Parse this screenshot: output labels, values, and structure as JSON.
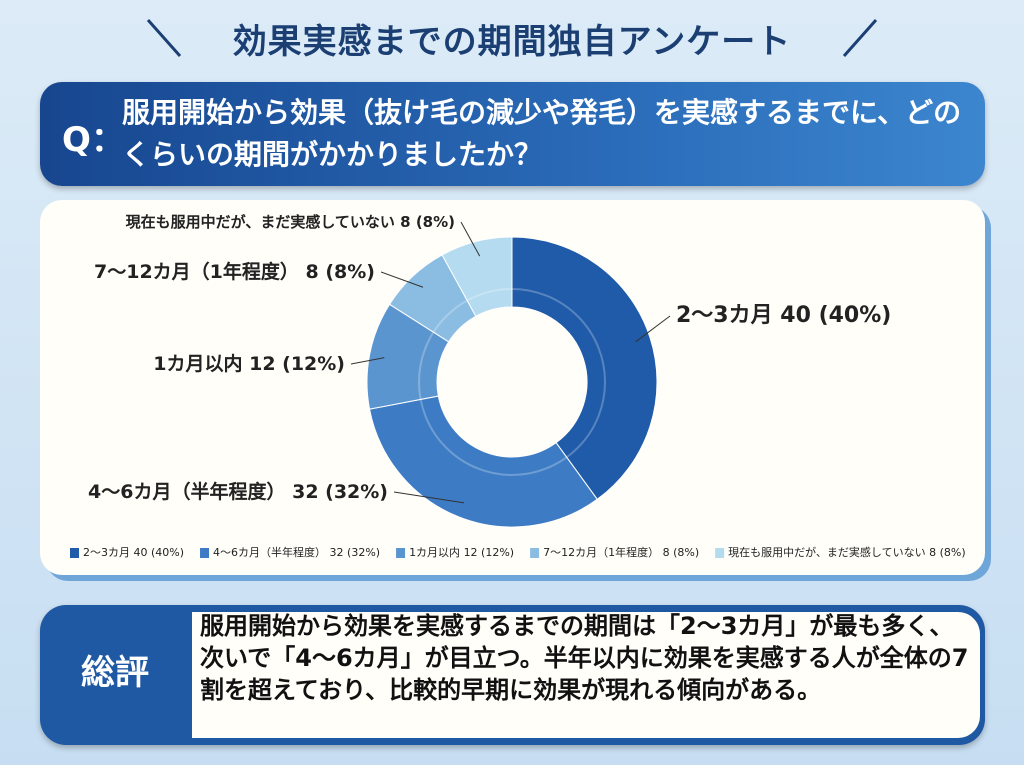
{
  "title": "効果実感までの期間独自アンケート",
  "question": {
    "label": "Q：",
    "text": "服用開始から効果（抜け毛の減少や発毛）を実感するまでに、どのくらいの期間がかかりましたか？"
  },
  "chart_data": {
    "type": "pie",
    "donut": true,
    "categories": [
      "2〜3カ月",
      "4〜6カ月（半年程度）",
      "1カ月以内",
      "7〜12カ月（1年程度）",
      "現在も服用中だが、まだ実感していない"
    ],
    "values": [
      40,
      32,
      12,
      8,
      8
    ],
    "value_labels": [
      "40 (40%)",
      "32 (32%)",
      "12 (12%)",
      "8 (8%)",
      "8 (8%)"
    ],
    "colors": [
      "#1f5ba8",
      "#3d7cc4",
      "#5b95d0",
      "#8bbde3",
      "#b5dbf0"
    ],
    "legend": "bottom"
  },
  "summary": {
    "label": "総評",
    "text": "服用開始から効果を実感するまでの期間は「2〜3カ月」が最も多く、次いで「4〜6カ月」が目立つ。半年以内に効果を実感する人が全体の7割を超えており、比較的早期に効果が現れる傾向がある。"
  }
}
